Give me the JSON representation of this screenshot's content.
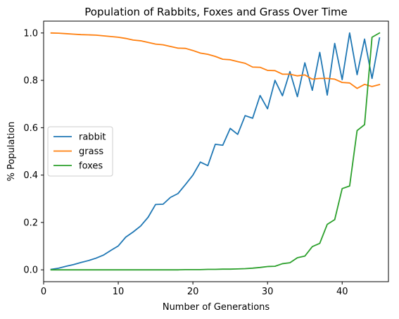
{
  "chart_data": {
    "type": "line",
    "title": "Population of Rabbits, Foxes and Grass Over Time",
    "xlabel": "Number of Generations",
    "ylabel": "% Population",
    "xlim": [
      0,
      46.2
    ],
    "ylim": [
      -0.05,
      1.05
    ],
    "xticks": [
      0,
      10,
      20,
      30,
      40
    ],
    "yticks": [
      0.0,
      0.2,
      0.4,
      0.6,
      0.8,
      1.0
    ],
    "xtick_labels": [
      "0",
      "10",
      "20",
      "30",
      "40"
    ],
    "ytick_labels": [
      "0.0",
      "0.2",
      "0.4",
      "0.6",
      "0.8",
      "1.0"
    ],
    "grid": false,
    "legend_position": "center-left",
    "x": [
      1,
      2,
      3,
      4,
      5,
      6,
      7,
      8,
      9,
      10,
      11,
      12,
      13,
      14,
      15,
      16,
      17,
      18,
      19,
      20,
      21,
      22,
      23,
      24,
      25,
      26,
      27,
      28,
      29,
      30,
      31,
      32,
      33,
      34,
      35,
      36,
      37,
      38,
      39,
      40,
      41,
      42,
      43,
      44,
      45
    ],
    "series": [
      {
        "name": "rabbit",
        "color": "#1f77b4",
        "values": [
          0.002,
          0.007,
          0.015,
          0.022,
          0.031,
          0.039,
          0.049,
          0.062,
          0.082,
          0.101,
          0.138,
          0.16,
          0.185,
          0.222,
          0.276,
          0.277,
          0.306,
          0.322,
          0.36,
          0.4,
          0.455,
          0.44,
          0.53,
          0.526,
          0.597,
          0.572,
          0.651,
          0.64,
          0.736,
          0.68,
          0.8,
          0.735,
          0.837,
          0.731,
          0.874,
          0.758,
          0.918,
          0.738,
          0.956,
          0.803,
          1.0,
          0.824,
          0.974,
          0.808,
          0.979
        ]
      },
      {
        "name": "grass",
        "color": "#ff7f0e",
        "values": [
          1.0,
          0.999,
          0.997,
          0.995,
          0.993,
          0.992,
          0.991,
          0.988,
          0.985,
          0.982,
          0.977,
          0.97,
          0.967,
          0.96,
          0.953,
          0.95,
          0.943,
          0.936,
          0.935,
          0.926,
          0.915,
          0.91,
          0.901,
          0.889,
          0.887,
          0.879,
          0.872,
          0.856,
          0.855,
          0.842,
          0.841,
          0.826,
          0.826,
          0.819,
          0.823,
          0.805,
          0.808,
          0.808,
          0.805,
          0.791,
          0.789,
          0.766,
          0.783,
          0.774,
          0.782
        ]
      },
      {
        "name": "foxes",
        "color": "#2ca02c",
        "values": [
          0.0,
          0.0,
          0.0,
          0.0,
          0.0,
          0.0,
          0.0,
          0.0,
          0.0,
          0.0,
          0.0,
          0.0,
          0.0,
          0.0,
          0.0,
          0.0,
          0.0,
          0.0,
          0.001,
          0.001,
          0.001,
          0.002,
          0.002,
          0.003,
          0.003,
          0.004,
          0.005,
          0.007,
          0.01,
          0.014,
          0.015,
          0.026,
          0.03,
          0.051,
          0.058,
          0.098,
          0.112,
          0.192,
          0.212,
          0.343,
          0.354,
          0.588,
          0.613,
          0.982,
          1.0
        ]
      }
    ]
  }
}
